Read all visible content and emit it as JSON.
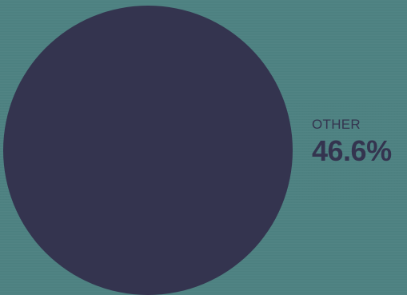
{
  "chart_data": {
    "type": "pie",
    "slices": [
      {
        "label": "OTHER",
        "value": 46.6,
        "display": "46.6%",
        "color": "#34344f"
      }
    ],
    "background_color": "#4e8282"
  }
}
